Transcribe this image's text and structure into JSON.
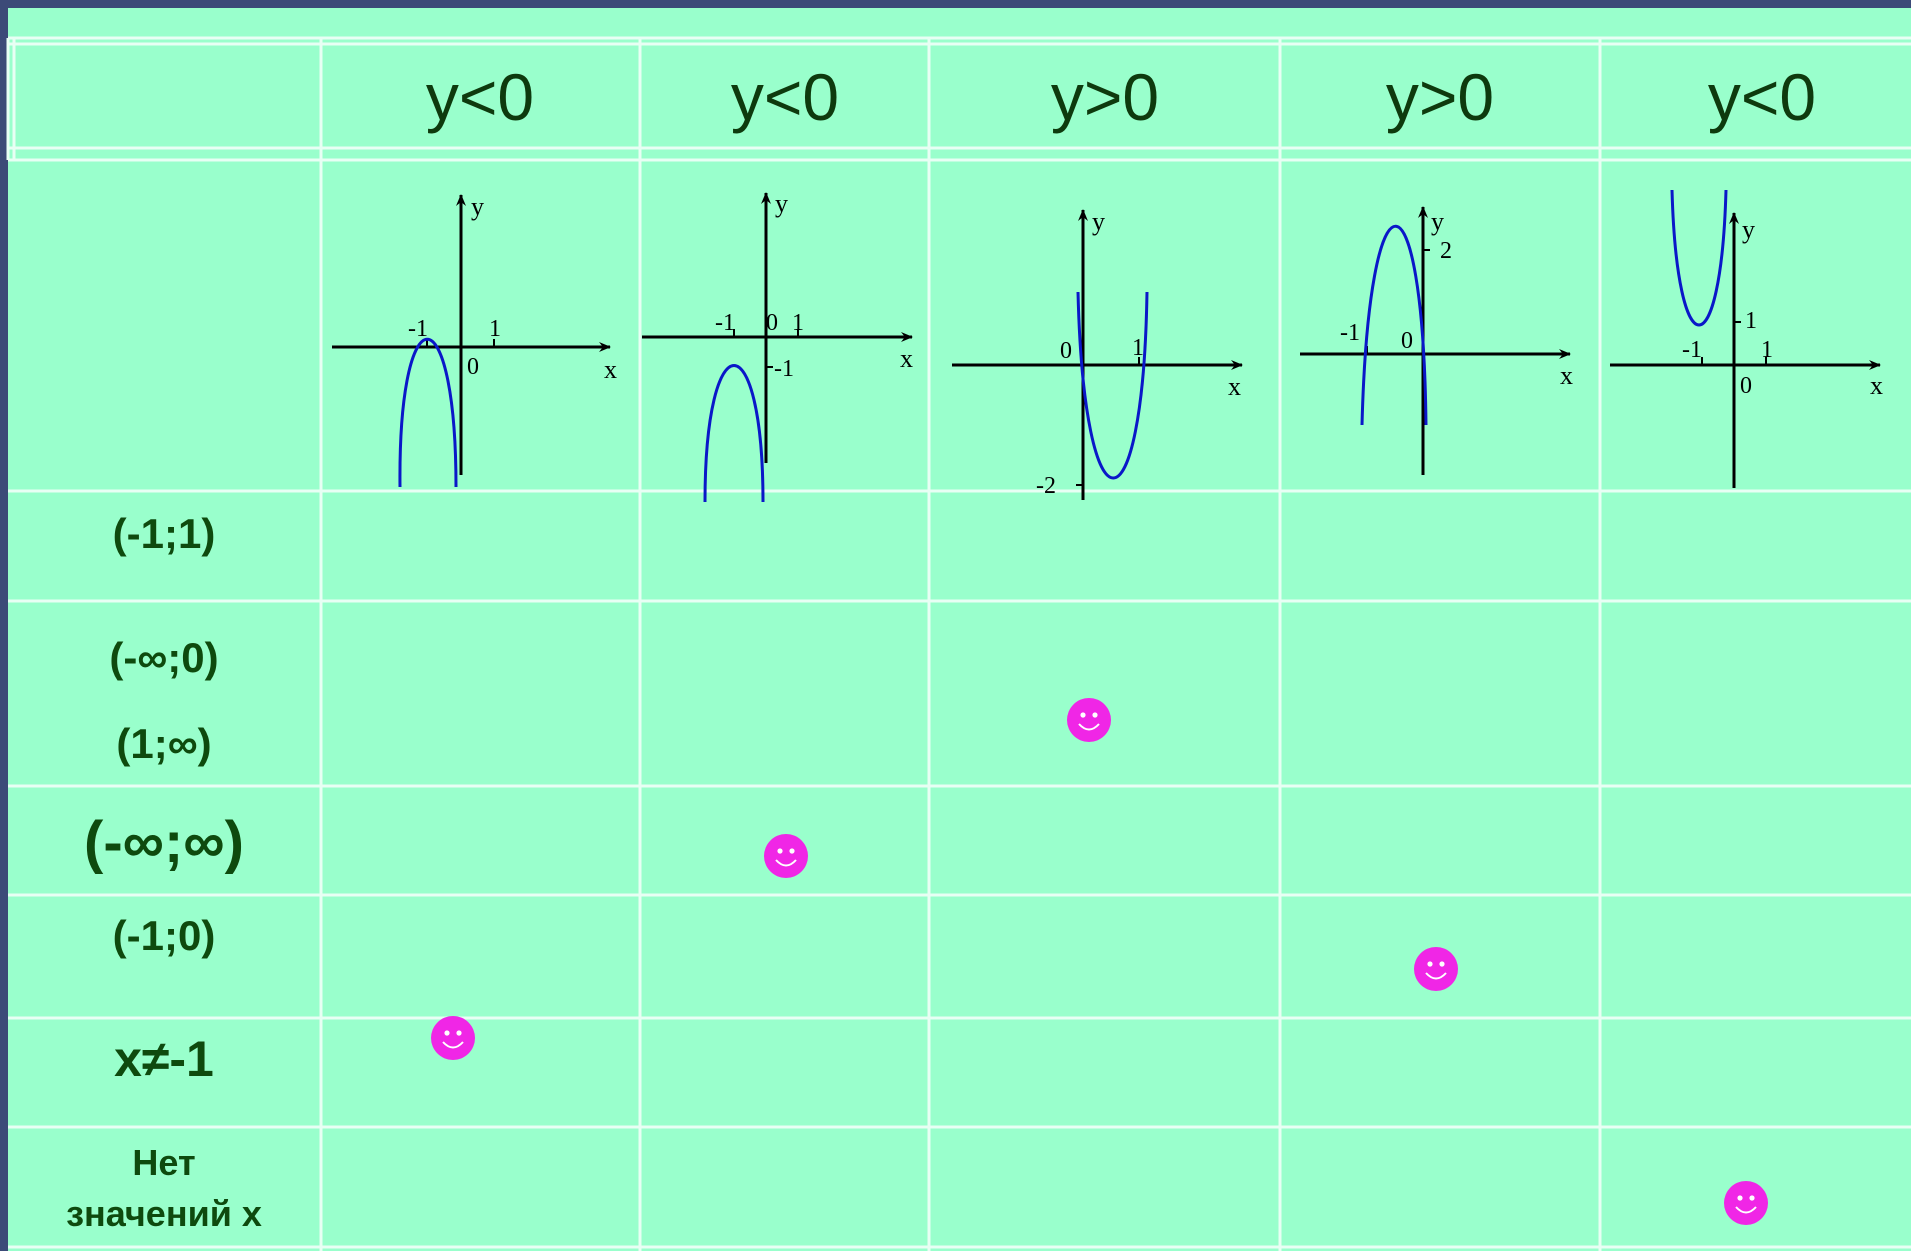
{
  "headers": [
    "y<0",
    "y<0",
    "y>0",
    "y>0",
    "y<0"
  ],
  "row_labels": [
    [
      "(-1;1)"
    ],
    [
      "(-∞;0)",
      "(1;∞)"
    ],
    [
      "(-∞;∞)"
    ],
    [
      "(-1;0)"
    ],
    [
      "x≠-1"
    ],
    [
      "Нет",
      "значений x"
    ]
  ],
  "graph_labels": [
    [
      "y",
      "x",
      "-1",
      "1",
      "0"
    ],
    [
      "y",
      "x",
      "-1",
      "0",
      "1",
      "-1"
    ],
    [
      "y",
      "x",
      "0",
      "1",
      "-2"
    ],
    [
      "y",
      "x",
      "-1",
      "0",
      "2"
    ],
    [
      "y",
      "x",
      "-1",
      "1",
      "0",
      "1"
    ]
  ],
  "answers": [
    {
      "column": 1,
      "row": 5
    },
    {
      "column": 2,
      "row": 3
    },
    {
      "column": 3,
      "row": 2
    },
    {
      "column": 4,
      "row": 4
    },
    {
      "column": 5,
      "row": 6
    }
  ],
  "colors": {
    "background": "#99ffcc",
    "frame": "#3c4a78",
    "grid": "#e8fff4",
    "header_text": "#0e3a0e",
    "label_text": "#0e4a0e",
    "curve": "#0a18c8",
    "smiley": "#f026e6"
  },
  "icons": [
    "smiley-face-icon"
  ]
}
